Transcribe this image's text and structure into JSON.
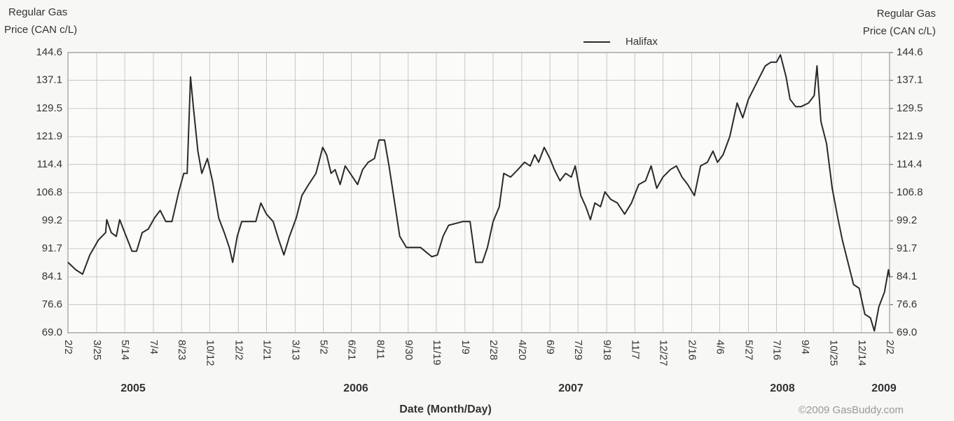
{
  "chart_data": {
    "type": "line",
    "ylabel": [
      "Regular Gas",
      "Price (CAN c/L)"
    ],
    "y2label": [
      "Regular Gas",
      "Price (CAN c/L)"
    ],
    "xlabel": "Date (Month/Day)",
    "credit": "©2009 GasBuddy.com",
    "year_labels": [
      "2005",
      "2006",
      "2007",
      "2008",
      "2009"
    ],
    "legend": "top",
    "grid": true,
    "xlim": [
      "2005-02-02",
      "2009-02-02"
    ],
    "xticks": [
      {
        "value": "2005-02-02",
        "label": "2/2"
      },
      {
        "value": "2005-03-25",
        "label": "3/25"
      },
      {
        "value": "2005-05-14",
        "label": "5/14"
      },
      {
        "value": "2005-07-04",
        "label": "7/4"
      },
      {
        "value": "2005-08-23",
        "label": "8/23"
      },
      {
        "value": "2005-10-12",
        "label": "10/12"
      },
      {
        "value": "2005-12-02",
        "label": "12/2"
      },
      {
        "value": "2006-01-21",
        "label": "1/21"
      },
      {
        "value": "2006-03-13",
        "label": "3/13"
      },
      {
        "value": "2006-05-02",
        "label": "5/2"
      },
      {
        "value": "2006-06-21",
        "label": "6/21"
      },
      {
        "value": "2006-08-11",
        "label": "8/11"
      },
      {
        "value": "2006-09-30",
        "label": "9/30"
      },
      {
        "value": "2006-11-19",
        "label": "11/19"
      },
      {
        "value": "2007-01-09",
        "label": "1/9"
      },
      {
        "value": "2007-02-28",
        "label": "2/28"
      },
      {
        "value": "2007-04-20",
        "label": "4/20"
      },
      {
        "value": "2007-06-09",
        "label": "6/9"
      },
      {
        "value": "2007-07-29",
        "label": "7/29"
      },
      {
        "value": "2007-09-18",
        "label": "9/18"
      },
      {
        "value": "2007-11-07",
        "label": "11/7"
      },
      {
        "value": "2007-12-27",
        "label": "12/27"
      },
      {
        "value": "2008-02-16",
        "label": "2/16"
      },
      {
        "value": "2008-04-06",
        "label": "4/6"
      },
      {
        "value": "2008-05-27",
        "label": "5/27"
      },
      {
        "value": "2008-07-16",
        "label": "7/16"
      },
      {
        "value": "2008-09-04",
        "label": "9/4"
      },
      {
        "value": "2008-10-25",
        "label": "10/25"
      },
      {
        "value": "2008-12-14",
        "label": "12/14"
      },
      {
        "value": "2009-02-02",
        "label": "2/2"
      }
    ],
    "ylim": [
      69,
      144.6
    ],
    "yticks": [
      {
        "value": 69,
        "label": "69.0"
      },
      76.6,
      84.1,
      91.7,
      99.2,
      106.8,
      114.4,
      121.9,
      129.5,
      137.1,
      144.6
    ],
    "y2lim": [
      69,
      144.6
    ],
    "y2ticks": [
      {
        "value": 69,
        "label": "69.0"
      },
      76.6,
      84.1,
      91.7,
      99.2,
      106.8,
      114.4,
      121.9,
      129.5,
      137.1,
      144.6
    ],
    "x": [
      "2005-02-02",
      "2005-02-16",
      "2005-02-28",
      "2005-03-13",
      "2005-03-28",
      "2005-04-10",
      "2005-04-12",
      "2005-04-20",
      "2005-04-29",
      "2005-05-05",
      "2005-05-14",
      "2005-05-27",
      "2005-06-04",
      "2005-06-14",
      "2005-06-25",
      "2005-07-06",
      "2005-07-16",
      "2005-07-26",
      "2005-08-06",
      "2005-08-18",
      "2005-08-27",
      "2005-09-02",
      "2005-09-08",
      "2005-09-13",
      "2005-09-21",
      "2005-09-28",
      "2005-10-08",
      "2005-10-17",
      "2005-10-28",
      "2005-11-07",
      "2005-11-16",
      "2005-11-22",
      "2005-11-30",
      "2005-12-08",
      "2005-12-20",
      "2006-01-02",
      "2006-01-11",
      "2006-01-21",
      "2006-02-02",
      "2006-02-12",
      "2006-02-21",
      "2006-03-03",
      "2006-03-15",
      "2006-03-25",
      "2006-04-06",
      "2006-04-19",
      "2006-05-01",
      "2006-05-08",
      "2006-05-16",
      "2006-05-23",
      "2006-06-01",
      "2006-06-10",
      "2006-06-19",
      "2006-07-02",
      "2006-07-11",
      "2006-07-21",
      "2006-08-01",
      "2006-08-09",
      "2006-08-19",
      "2006-08-27",
      "2006-09-06",
      "2006-09-15",
      "2006-09-27",
      "2006-10-22",
      "2006-11-11",
      "2006-11-21",
      "2006-12-01",
      "2006-12-11",
      "2007-01-05",
      "2007-01-18",
      "2007-01-28",
      "2007-02-09",
      "2007-02-18",
      "2007-02-28",
      "2007-03-11",
      "2007-03-19",
      "2007-03-31",
      "2007-04-13",
      "2007-04-25",
      "2007-05-05",
      "2007-05-13",
      "2007-05-20",
      "2007-05-30",
      "2007-06-09",
      "2007-06-17",
      "2007-06-27",
      "2007-07-07",
      "2007-07-17",
      "2007-07-24",
      "2007-08-03",
      "2007-08-12",
      "2007-08-20",
      "2007-08-28",
      "2007-09-07",
      "2007-09-15",
      "2007-09-25",
      "2007-10-07",
      "2007-10-20",
      "2007-11-01",
      "2007-11-14",
      "2007-11-26",
      "2007-12-06",
      "2007-12-16",
      "2007-12-27",
      "2008-01-09",
      "2008-01-20",
      "2008-01-30",
      "2008-02-09",
      "2008-02-21",
      "2008-03-03",
      "2008-03-15",
      "2008-03-25",
      "2008-04-02",
      "2008-04-12",
      "2008-04-24",
      "2008-05-07",
      "2008-05-17",
      "2008-05-27",
      "2008-06-06",
      "2008-06-16",
      "2008-06-26",
      "2008-07-06",
      "2008-07-16",
      "2008-07-23",
      "2008-08-02",
      "2008-08-09",
      "2008-08-19",
      "2008-08-29",
      "2008-09-11",
      "2008-09-21",
      "2008-09-26",
      "2008-10-03",
      "2008-10-13",
      "2008-10-23",
      "2008-11-02",
      "2008-11-10",
      "2008-11-20",
      "2008-11-30",
      "2008-12-10",
      "2008-12-20",
      "2008-12-30",
      "2009-01-06",
      "2009-01-14",
      "2009-01-24",
      "2009-01-31",
      "2009-02-02"
    ],
    "series": [
      {
        "name": "Halifax",
        "color": "#2a2a2a",
        "values": [
          88,
          86,
          84.8,
          90,
          94,
          96,
          99.5,
          96,
          95,
          99.5,
          96,
          91,
          91,
          96,
          97,
          100,
          102,
          99,
          99,
          107,
          112,
          112,
          138,
          130,
          118,
          112,
          116,
          110,
          100,
          96,
          92,
          88,
          95,
          99,
          99,
          99,
          104,
          101,
          99,
          94,
          90,
          95,
          100,
          106,
          109,
          112,
          119,
          117,
          112,
          113,
          109,
          114,
          112,
          109,
          113,
          115,
          116,
          121,
          121,
          114,
          104,
          95,
          92,
          92,
          89.5,
          90,
          95,
          98,
          99,
          99,
          88,
          88,
          92,
          99,
          103,
          112,
          111,
          113,
          115,
          114,
          117,
          115,
          119,
          116,
          113,
          110,
          112,
          111,
          114,
          106,
          103,
          99.5,
          104,
          103,
          107,
          105,
          104,
          101,
          104,
          109,
          110,
          114,
          108,
          111,
          113,
          114,
          111,
          109,
          106,
          114,
          115,
          118,
          115,
          117,
          122,
          131,
          127,
          132,
          135,
          138,
          141,
          142,
          142,
          144,
          138,
          132,
          130,
          130,
          131,
          133,
          141,
          126,
          120,
          108,
          100,
          94,
          88,
          82,
          81,
          74,
          73,
          69.5,
          76,
          80,
          86,
          84
        ]
      }
    ]
  }
}
